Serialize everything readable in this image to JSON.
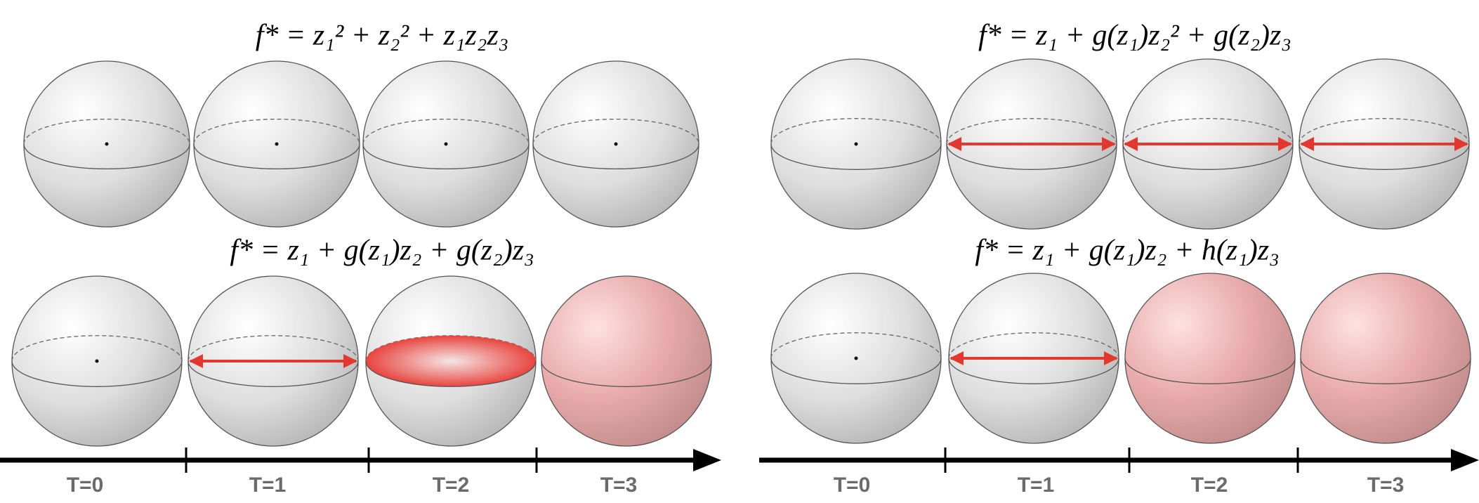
{
  "panels": [
    {
      "formulas": [
        "f* = z₁² + z₂² + z₁z₂z₃",
        "f* = z₁ + g(z₁)z₂ + g(z₂)z₃"
      ],
      "timeline": [
        "T=0",
        "T=1",
        "T=2",
        "T=3"
      ]
    },
    {
      "formulas": [
        "f* = z₁ + g(z₁)z₂² + g(z₂)z₃",
        "f* = z₁ + g(z₁)z₂ + h(z₁)z₃"
      ],
      "timeline": [
        "T=0",
        "T=1",
        "T=2",
        "T=3"
      ]
    }
  ]
}
